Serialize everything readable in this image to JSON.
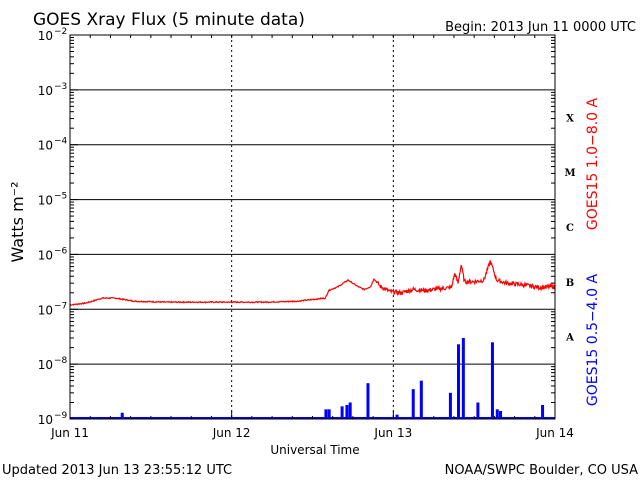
{
  "header": {
    "title": "GOES Xray Flux (5 minute data)",
    "begin": "Begin:  2013 Jun 11 0000 UTC"
  },
  "footer": {
    "updated": "Updated 2013 Jun 13 23:55:12 UTC",
    "source": "NOAA/SWPC Boulder, CO USA"
  },
  "chart_data": {
    "type": "line",
    "title": "GOES Xray Flux (5 minute data)",
    "xlabel": "Universal Time",
    "ylabel": "Watts m⁻²",
    "scale": "log",
    "xlim_days": [
      0,
      3
    ],
    "ylim": [
      1e-09,
      0.01
    ],
    "x_ticks": [
      "Jun 11",
      "Jun 12",
      "Jun 13",
      "Jun 14"
    ],
    "y_ticks": [
      {
        "base": "10",
        "exp": "−2"
      },
      {
        "base": "10",
        "exp": "−3"
      },
      {
        "base": "10",
        "exp": "−4"
      },
      {
        "base": "10",
        "exp": "−5"
      },
      {
        "base": "10",
        "exp": "−6"
      },
      {
        "base": "10",
        "exp": "−7"
      },
      {
        "base": "10",
        "exp": "−8"
      },
      {
        "base": "10",
        "exp": "−9"
      }
    ],
    "flare_classes": [
      "X",
      "M",
      "C",
      "B",
      "A"
    ],
    "grid": true,
    "series": [
      {
        "name": "GOES15 1.0−8.0 A",
        "color": "#ff0000",
        "points": [
          [
            0.0,
            1.2e-07
          ],
          [
            0.1,
            1.3e-07
          ],
          [
            0.2,
            1.6e-07
          ],
          [
            0.28,
            1.6e-07
          ],
          [
            0.4,
            1.4e-07
          ],
          [
            0.6,
            1.35e-07
          ],
          [
            0.8,
            1.35e-07
          ],
          [
            1.0,
            1.35e-07
          ],
          [
            1.2,
            1.35e-07
          ],
          [
            1.4,
            1.4e-07
          ],
          [
            1.58,
            1.6e-07
          ],
          [
            1.6,
            2.2e-07
          ],
          [
            1.66,
            2.6e-07
          ],
          [
            1.72,
            3.4e-07
          ],
          [
            1.78,
            2.6e-07
          ],
          [
            1.82,
            2.3e-07
          ],
          [
            1.86,
            2.6e-07
          ],
          [
            1.88,
            3.6e-07
          ],
          [
            1.92,
            2.6e-07
          ],
          [
            1.98,
            2.1e-07
          ],
          [
            2.05,
            2e-07
          ],
          [
            2.12,
            2.3e-07
          ],
          [
            2.2,
            2.2e-07
          ],
          [
            2.3,
            2.4e-07
          ],
          [
            2.36,
            2.5e-07
          ],
          [
            2.38,
            4.5e-07
          ],
          [
            2.4,
            3e-07
          ],
          [
            2.42,
            6.5e-07
          ],
          [
            2.44,
            3.2e-07
          ],
          [
            2.5,
            3.2e-07
          ],
          [
            2.56,
            3.4e-07
          ],
          [
            2.6,
            7.5e-07
          ],
          [
            2.64,
            3.4e-07
          ],
          [
            2.7,
            3e-07
          ],
          [
            2.8,
            2.8e-07
          ],
          [
            2.9,
            2.5e-07
          ],
          [
            3.0,
            2.6e-07
          ]
        ]
      },
      {
        "name": "GOES15 0.5−4.0 A",
        "color": "#0000ff",
        "baseline": 1e-09,
        "spikes": [
          [
            0.32,
            1.3e-09
          ],
          [
            1.58,
            1.5e-09
          ],
          [
            1.6,
            1.5e-09
          ],
          [
            1.68,
            1.7e-09
          ],
          [
            1.71,
            1.8e-09
          ],
          [
            1.73,
            2e-09
          ],
          [
            1.84,
            4.5e-09
          ],
          [
            2.02,
            1.2e-09
          ],
          [
            2.12,
            3.5e-09
          ],
          [
            2.17,
            5e-09
          ],
          [
            2.35,
            3e-09
          ],
          [
            2.4,
            2.3e-08
          ],
          [
            2.43,
            3e-08
          ],
          [
            2.52,
            2e-09
          ],
          [
            2.61,
            2.5e-08
          ],
          [
            2.64,
            1.5e-09
          ],
          [
            2.66,
            1.4e-09
          ],
          [
            2.92,
            1.8e-09
          ]
        ]
      }
    ]
  }
}
